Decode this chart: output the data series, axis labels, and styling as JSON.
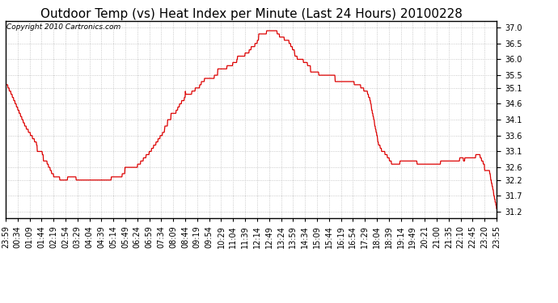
{
  "title": "Outdoor Temp (vs) Heat Index per Minute (Last 24 Hours) 20100228",
  "copyright": "Copyright 2010 Cartronics.com",
  "line_color": "#dd0000",
  "background_color": "#ffffff",
  "plot_bg_color": "#ffffff",
  "grid_color": "#bbbbbb",
  "yticks": [
    31.2,
    31.7,
    32.2,
    32.6,
    33.1,
    33.6,
    34.1,
    34.6,
    35.1,
    35.5,
    36.0,
    36.5,
    37.0
  ],
  "ylim": [
    31.0,
    37.2
  ],
  "title_fontsize": 11,
  "copyright_fontsize": 6.5,
  "tick_fontsize": 7,
  "x_tick_labels": [
    "23:59",
    "00:34",
    "01:09",
    "01:44",
    "02:19",
    "02:54",
    "03:29",
    "04:04",
    "04:39",
    "05:14",
    "05:49",
    "06:24",
    "06:59",
    "07:34",
    "08:09",
    "08:44",
    "09:19",
    "09:54",
    "10:29",
    "11:04",
    "11:39",
    "12:14",
    "12:49",
    "13:24",
    "13:59",
    "14:34",
    "15:09",
    "15:44",
    "16:19",
    "16:54",
    "17:29",
    "18:04",
    "18:39",
    "19:14",
    "19:49",
    "20:21",
    "21:00",
    "21:35",
    "22:10",
    "22:45",
    "23:20",
    "23:55"
  ],
  "key_times": [
    0.0,
    0.012,
    0.04,
    0.065,
    0.08,
    0.095,
    0.11,
    0.13,
    0.155,
    0.175,
    0.185,
    0.2,
    0.23,
    0.26,
    0.295,
    0.33,
    0.36,
    0.39,
    0.42,
    0.45,
    0.475,
    0.5,
    0.52,
    0.535,
    0.55,
    0.56,
    0.575,
    0.59,
    0.61,
    0.64,
    0.67,
    0.7,
    0.72,
    0.74,
    0.76,
    0.78,
    0.8,
    0.84,
    0.88,
    0.92,
    0.95,
    0.96,
    0.97,
    0.985,
    1.0
  ],
  "key_vals": [
    35.2,
    34.8,
    33.8,
    33.2,
    32.8,
    32.3,
    32.2,
    32.3,
    32.3,
    32.2,
    32.3,
    32.3,
    32.4,
    32.6,
    33.2,
    34.0,
    34.8,
    35.2,
    35.5,
    35.8,
    36.1,
    36.4,
    36.8,
    37.0,
    36.8,
    36.6,
    36.5,
    36.1,
    35.8,
    35.5,
    35.4,
    35.2,
    35.1,
    34.8,
    33.2,
    32.8,
    32.8,
    32.8,
    32.8,
    32.8,
    32.9,
    33.1,
    32.7,
    32.4,
    31.2
  ]
}
